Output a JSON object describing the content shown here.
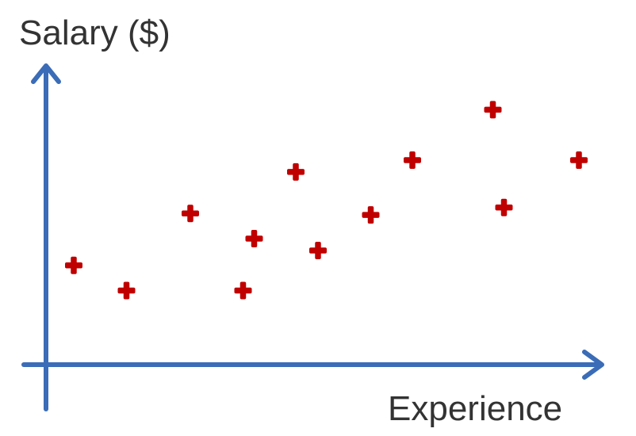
{
  "chart_data": {
    "type": "scatter",
    "title": "",
    "xlabel": "Experience",
    "ylabel": "Salary ($)",
    "xlim": [
      0,
      100
    ],
    "ylim": [
      0,
      100
    ],
    "grid": false,
    "ticks": false,
    "marker": "plus",
    "colors": {
      "axis": "#3b6cb7",
      "point": "#c00000",
      "text": "#333333"
    },
    "series": [
      {
        "x": [
          5,
          14.5,
          26,
          35.5,
          37.5,
          45,
          49,
          58.5,
          66,
          80.5,
          82.5,
          96
        ],
        "y": [
          33.5,
          25,
          51,
          25,
          42.5,
          65,
          38.5,
          50.5,
          69,
          86,
          53,
          69
        ]
      }
    ]
  }
}
